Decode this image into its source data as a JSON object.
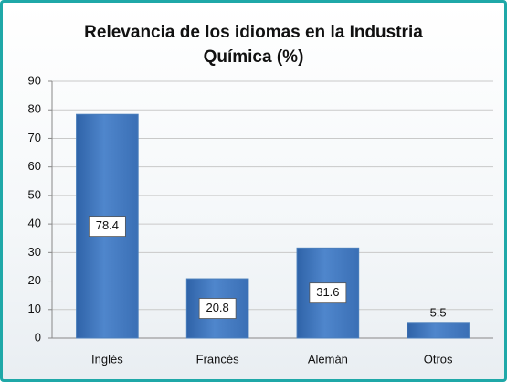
{
  "chart_data": {
    "type": "bar",
    "title": "Relevancia de los idiomas en la Industria Química (%)",
    "categories": [
      "Inglés",
      "Francés",
      "Alemán",
      "Otros"
    ],
    "values": [
      78.4,
      20.8,
      31.6,
      5.5
    ],
    "color": "#4a7ebb",
    "ylim": [
      0,
      90
    ],
    "yticks": [
      0,
      10,
      20,
      30,
      40,
      50,
      60,
      70,
      80,
      90
    ],
    "grid": true
  }
}
